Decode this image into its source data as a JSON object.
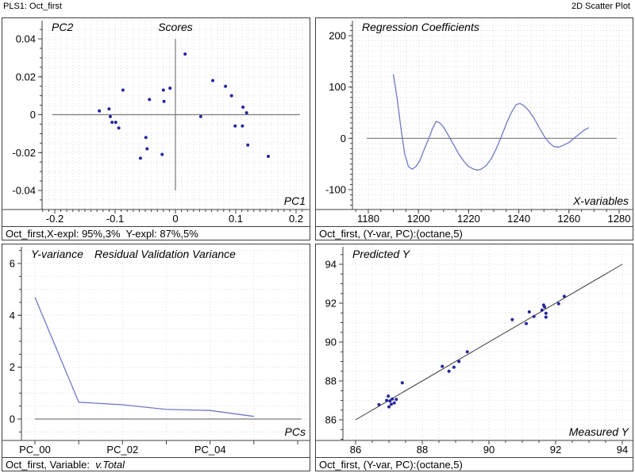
{
  "header": {
    "left": "PLS1: Oct_first",
    "right": "2D Scatter Plot"
  },
  "colors": {
    "accent_point": "#26269c",
    "accent_curve": "#6f79c7",
    "axis": "#3f3f3f",
    "zero_line": "#7a7a7a",
    "diagonal": "#3a3a3a",
    "grid_dots": "#dcdce6",
    "panel_border": "#3f3f3f",
    "background": "#ffffff"
  },
  "chart_data": [
    {
      "id": "scores",
      "type": "scatter",
      "title": "Scores",
      "corner_ylabel": "PC2",
      "corner_xlabel": "PC1",
      "xlim": [
        -0.22,
        0.22
      ],
      "ylim": [
        -0.05,
        0.05
      ],
      "x_ticks": [
        -0.2,
        -0.1,
        0,
        0.1,
        0.2
      ],
      "x_tick_labels": [
        "-0.2",
        "-0.1",
        "0",
        "0.1",
        "0.2"
      ],
      "y_ticks": [
        0.04,
        0.02,
        0,
        -0.02,
        -0.04
      ],
      "y_tick_labels": [
        "0.04",
        "0.02",
        "0",
        "-0.02",
        "-0.04"
      ],
      "points": [
        [
          0.016,
          0.032
        ],
        [
          0.062,
          0.018
        ],
        [
          0.083,
          0.015
        ],
        [
          0.093,
          0.01
        ],
        [
          0.112,
          0.004
        ],
        [
          0.118,
          0.001
        ],
        [
          0.042,
          -0.001
        ],
        [
          0.099,
          -0.006
        ],
        [
          0.111,
          -0.006
        ],
        [
          0.12,
          -0.016
        ],
        [
          0.154,
          -0.022
        ],
        [
          -0.087,
          0.013
        ],
        [
          -0.02,
          0.013
        ],
        [
          -0.009,
          0.014
        ],
        [
          -0.043,
          0.008
        ],
        [
          -0.019,
          0.007
        ],
        [
          -0.126,
          0.002
        ],
        [
          -0.11,
          0.003
        ],
        [
          -0.108,
          -0.001
        ],
        [
          -0.105,
          -0.004
        ],
        [
          -0.099,
          -0.004
        ],
        [
          -0.094,
          -0.007
        ],
        [
          -0.049,
          -0.012
        ],
        [
          -0.047,
          -0.018
        ],
        [
          -0.022,
          -0.021
        ],
        [
          -0.058,
          -0.023
        ]
      ],
      "status": "Oct_first,X-expl: 95%,3%  Y-expl: 87%,5%"
    },
    {
      "id": "regression-coefficients",
      "type": "line",
      "title": "Regression Coefficients",
      "corner_xlabel": "X-variables",
      "xlim": [
        1174,
        1280
      ],
      "ylim": [
        -130,
        220
      ],
      "x_ticks": [
        1180,
        1200,
        1220,
        1240,
        1260,
        1280
      ],
      "x_tick_labels": [
        "1180",
        "1200",
        "1220",
        "1240",
        "1260",
        "1280"
      ],
      "y_ticks": [
        200,
        100,
        0,
        -100
      ],
      "y_tick_labels": [
        "200",
        "100",
        "0",
        "-100"
      ],
      "line": [
        [
          1190,
          125
        ],
        [
          1191.5,
          78
        ],
        [
          1193,
          20
        ],
        [
          1194.5,
          -30
        ],
        [
          1196,
          -55
        ],
        [
          1197.5,
          -60
        ],
        [
          1199,
          -55
        ],
        [
          1200.5,
          -44
        ],
        [
          1202,
          -25
        ],
        [
          1204,
          -2
        ],
        [
          1205.5,
          18
        ],
        [
          1207,
          33
        ],
        [
          1208.5,
          30
        ],
        [
          1210,
          22
        ],
        [
          1212,
          5
        ],
        [
          1214,
          -12
        ],
        [
          1216,
          -30
        ],
        [
          1218,
          -44
        ],
        [
          1220,
          -55
        ],
        [
          1222,
          -60
        ],
        [
          1223.5,
          -62
        ],
        [
          1225,
          -60
        ],
        [
          1227,
          -53
        ],
        [
          1229,
          -40
        ],
        [
          1231,
          -20
        ],
        [
          1233,
          3
        ],
        [
          1235,
          28
        ],
        [
          1237,
          50
        ],
        [
          1239,
          66
        ],
        [
          1240.5,
          68
        ],
        [
          1242,
          64
        ],
        [
          1244,
          54
        ],
        [
          1246,
          40
        ],
        [
          1248,
          22
        ],
        [
          1250,
          5
        ],
        [
          1252,
          -8
        ],
        [
          1254,
          -16
        ],
        [
          1256,
          -17
        ],
        [
          1258,
          -13
        ],
        [
          1260,
          -8
        ],
        [
          1262,
          0
        ],
        [
          1264,
          8
        ],
        [
          1266,
          16
        ],
        [
          1268,
          21
        ]
      ],
      "status": "Oct_first, (Y-var, PC):(octane,5)"
    },
    {
      "id": "residual-validation-variance",
      "type": "line",
      "title": "Residual Validation Variance",
      "corner_ylabel": "Y-variance",
      "corner_xlabel": "PCs",
      "xlim": [
        -0.5,
        6.3
      ],
      "ylim": [
        -0.7,
        6.6
      ],
      "x_ticks": [
        0,
        1,
        2,
        3,
        4,
        5,
        6
      ],
      "x_tick_labels": [
        "PC_00",
        "",
        "PC_02",
        "",
        "PC_04",
        "",
        ""
      ],
      "y_ticks": [
        6,
        4,
        2,
        0
      ],
      "y_tick_labels": [
        "6",
        "4",
        "2",
        "0"
      ],
      "line": [
        [
          0,
          4.7
        ],
        [
          1,
          0.65
        ],
        [
          2,
          0.55
        ],
        [
          3,
          0.37
        ],
        [
          4,
          0.33
        ],
        [
          5,
          0.1
        ]
      ],
      "status_prefix": "Oct_first, Variable:  ",
      "status_variable": "v.Total"
    },
    {
      "id": "predicted-vs-measured",
      "type": "scatter",
      "title": "Predicted Y",
      "corner_xlabel": "Measured Y",
      "xlim": [
        85.6,
        94.3
      ],
      "ylim": [
        85.0,
        94.9
      ],
      "x_ticks": [
        86,
        88,
        90,
        92,
        94
      ],
      "x_tick_labels": [
        "86",
        "88",
        "90",
        "92",
        "94"
      ],
      "y_ticks": [
        94,
        92,
        90,
        88,
        86
      ],
      "y_tick_labels": [
        "94",
        "92",
        "90",
        "88",
        "86"
      ],
      "diagonal": [
        [
          86,
          86
        ],
        [
          94,
          94
        ]
      ],
      "points": [
        [
          86.7,
          86.78
        ],
        [
          86.93,
          87.0
        ],
        [
          86.98,
          87.22
        ],
        [
          87.0,
          86.67
        ],
        [
          87.03,
          86.97
        ],
        [
          87.07,
          86.8
        ],
        [
          87.1,
          87.07
        ],
        [
          87.16,
          86.87
        ],
        [
          87.22,
          87.05
        ],
        [
          87.4,
          87.9
        ],
        [
          88.6,
          88.75
        ],
        [
          88.8,
          88.5
        ],
        [
          88.95,
          88.7
        ],
        [
          89.1,
          89.0
        ],
        [
          89.35,
          89.5
        ],
        [
          90.7,
          91.15
        ],
        [
          91.12,
          90.95
        ],
        [
          91.21,
          91.55
        ],
        [
          91.35,
          91.32
        ],
        [
          91.59,
          91.64
        ],
        [
          91.64,
          91.9
        ],
        [
          91.67,
          91.8
        ],
        [
          91.71,
          91.48
        ],
        [
          91.71,
          91.28
        ],
        [
          92.09,
          91.97
        ],
        [
          92.26,
          92.35
        ]
      ],
      "status": "Oct_first, (Y-var, PC):(octane,5)"
    }
  ]
}
